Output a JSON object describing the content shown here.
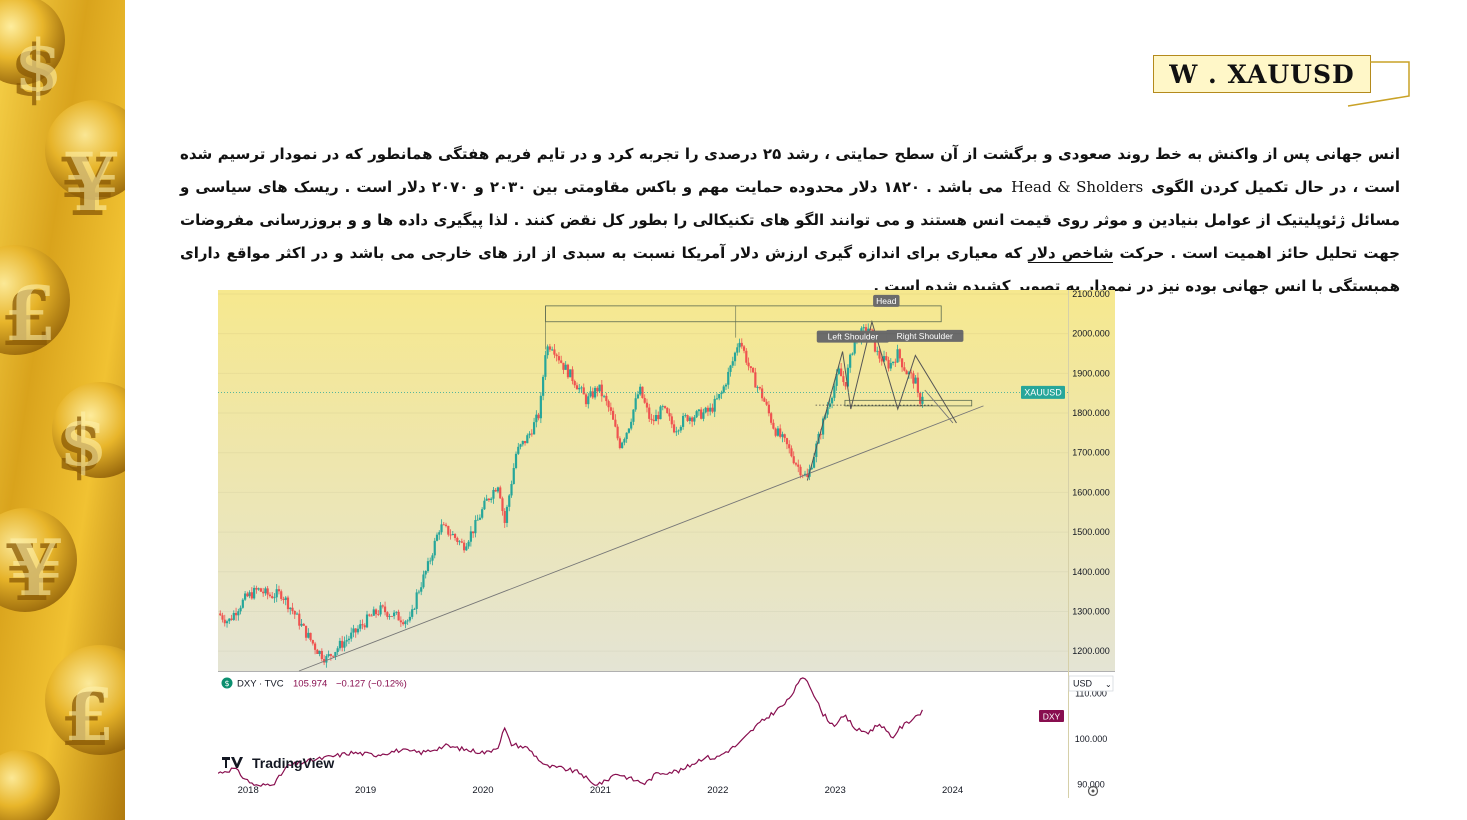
{
  "slide": {
    "title": "W . XAUUSD",
    "paragraph_part1": "انس جهانی پس از واکنش به خط روند صعودی و برگشت از  آن سطح حمایتی ، رشد ۲۵ درصدی را تجربه کرد و در تایم فریم هفتگی  همانطور که در نمودار ترسیم شده است ، در حال تکمیل کردن الگوی",
    "paragraph_latin": "Head & Sholders",
    "paragraph_part2": "می باشد . ۱۸۲۰ دلار محدوده حمایت مهم و باکس مقاومتی بین ۲۰۳۰ و ۲۰۷۰ دلار است . ریسک های سیاسی و مسائل ژئوپلیتیک از عوامل بنیادین و موثر روی قیمت انس هستند و می توانند الگو های تکنیکالی را بطور کل نقض کنند . لذا پیگیری داده ها و و بروزرسانی مفروضات جهت تحلیل حائز اهمیت است . حرکت",
    "paragraph_link": "شاخص دلار",
    "paragraph_part3": "که معیاری برای اندازه گیری ارزش دلار آمریکا نسبت به سبدی از ارز های خارجی می باشد و در اکثر مواقع دارای همبستگی با انس جهانی بوده نیز در نمودار به تصویر کشیده شده است ."
  },
  "colors": {
    "accent_gold": "#c9a227",
    "chart_bg_top": "#f6e88e",
    "chart_bg_bottom": "#e6e6d2",
    "up": "#26a69a",
    "down": "#ef5350",
    "dxy_line": "#880e4f"
  },
  "chart_data": [
    {
      "type": "candlestick",
      "title": "",
      "symbol_label": "XAUUSD",
      "x_ticks": [
        "2018",
        "2019",
        "2020",
        "2021",
        "2022",
        "2023",
        "2024"
      ],
      "y_ticks": [
        "1200.000",
        "1300.000",
        "1400.000",
        "1500.000",
        "1600.000",
        "1700.000",
        "1800.000",
        "1900.000",
        "2000.000",
        "2100.000"
      ],
      "ylim": [
        1150,
        2110
      ],
      "x_range": [
        2017.76,
        2025.0
      ],
      "last_price": 1852,
      "close_path": [
        [
          2017.76,
          1295
        ],
        [
          2017.85,
          1275
        ],
        [
          2017.93,
          1310
        ],
        [
          2018.0,
          1335
        ],
        [
          2018.1,
          1355
        ],
        [
          2018.2,
          1340
        ],
        [
          2018.3,
          1345
        ],
        [
          2018.4,
          1300
        ],
        [
          2018.5,
          1250
        ],
        [
          2018.6,
          1205
        ],
        [
          2018.68,
          1180
        ],
        [
          2018.8,
          1215
        ],
        [
          2018.92,
          1245
        ],
        [
          2019.05,
          1285
        ],
        [
          2019.15,
          1305
        ],
        [
          2019.3,
          1285
        ],
        [
          2019.4,
          1275
        ],
        [
          2019.45,
          1340
        ],
        [
          2019.55,
          1415
        ],
        [
          2019.65,
          1515
        ],
        [
          2019.75,
          1495
        ],
        [
          2019.85,
          1465
        ],
        [
          2019.95,
          1515
        ],
        [
          2020.05,
          1580
        ],
        [
          2020.15,
          1625
        ],
        [
          2020.2,
          1520
        ],
        [
          2020.3,
          1700
        ],
        [
          2020.4,
          1740
        ],
        [
          2020.5,
          1800
        ],
        [
          2020.55,
          1960
        ],
        [
          2020.6,
          1975
        ],
        [
          2020.7,
          1920
        ],
        [
          2020.8,
          1880
        ],
        [
          2020.9,
          1830
        ],
        [
          2021.0,
          1865
        ],
        [
          2021.1,
          1805
        ],
        [
          2021.18,
          1720
        ],
        [
          2021.25,
          1760
        ],
        [
          2021.35,
          1860
        ],
        [
          2021.45,
          1775
        ],
        [
          2021.55,
          1810
        ],
        [
          2021.65,
          1760
        ],
        [
          2021.75,
          1790
        ],
        [
          2021.85,
          1795
        ],
        [
          2021.95,
          1805
        ],
        [
          2022.05,
          1850
        ],
        [
          2022.15,
          1935
        ],
        [
          2022.2,
          1990
        ],
        [
          2022.3,
          1900
        ],
        [
          2022.4,
          1840
        ],
        [
          2022.5,
          1760
        ],
        [
          2022.6,
          1720
        ],
        [
          2022.7,
          1665
        ],
        [
          2022.78,
          1635
        ],
        [
          2022.85,
          1710
        ],
        [
          2022.95,
          1815
        ],
        [
          2023.05,
          1905
        ],
        [
          2023.1,
          1870
        ],
        [
          2023.18,
          1985
        ],
        [
          2023.3,
          2015
        ],
        [
          2023.38,
          1945
        ],
        [
          2023.48,
          1920
        ],
        [
          2023.55,
          1950
        ],
        [
          2023.62,
          1905
        ],
        [
          2023.7,
          1880
        ],
        [
          2023.73,
          1825
        ],
        [
          2023.77,
          1855
        ]
      ],
      "annotations": [
        "Head",
        "Left Shoulder",
        "Right Shoulder"
      ],
      "resistance_box": [
        2030,
        2070
      ],
      "support_level": 1820
    },
    {
      "type": "line",
      "title": "",
      "symbol_header": "DXY · TVC",
      "last_value": "105.974",
      "change": "−0.127 (−0.12%)",
      "series_label": "DXY",
      "currency_label": "USD",
      "currency_suffix": "⌄",
      "y_ticks": [
        "90.000",
        "100.000",
        "110.000"
      ],
      "ylim": [
        87,
        115
      ],
      "points": [
        [
          2017.76,
          92.5
        ],
        [
          2017.9,
          93.5
        ],
        [
          2018.0,
          91.0
        ],
        [
          2018.1,
          89.5
        ],
        [
          2018.25,
          90.5
        ],
        [
          2018.35,
          94.0
        ],
        [
          2018.5,
          95.0
        ],
        [
          2018.7,
          96.0
        ],
        [
          2018.9,
          97.0
        ],
        [
          2019.1,
          96.5
        ],
        [
          2019.3,
          97.5
        ],
        [
          2019.5,
          97.0
        ],
        [
          2019.7,
          98.5
        ],
        [
          2019.9,
          97.5
        ],
        [
          2020.05,
          97.0
        ],
        [
          2020.15,
          98.5
        ],
        [
          2020.2,
          102.5
        ],
        [
          2020.25,
          99.0
        ],
        [
          2020.4,
          98.0
        ],
        [
          2020.55,
          94.0
        ],
        [
          2020.7,
          93.5
        ],
        [
          2020.85,
          92.5
        ],
        [
          2020.95,
          90.0
        ],
        [
          2021.05,
          90.5
        ],
        [
          2021.15,
          92.5
        ],
        [
          2021.3,
          91.0
        ],
        [
          2021.4,
          90.2
        ],
        [
          2021.5,
          92.5
        ],
        [
          2021.7,
          93.0
        ],
        [
          2021.9,
          96.0
        ],
        [
          2022.0,
          95.8
        ],
        [
          2022.2,
          99.0
        ],
        [
          2022.35,
          103.0
        ],
        [
          2022.5,
          106.0
        ],
        [
          2022.6,
          108.0
        ],
        [
          2022.7,
          112.0
        ],
        [
          2022.75,
          114.0
        ],
        [
          2022.8,
          112.0
        ],
        [
          2022.9,
          106.0
        ],
        [
          2023.0,
          103.0
        ],
        [
          2023.1,
          105.0
        ],
        [
          2023.2,
          102.0
        ],
        [
          2023.3,
          101.5
        ],
        [
          2023.4,
          103.5
        ],
        [
          2023.5,
          100.0
        ],
        [
          2023.55,
          102.0
        ],
        [
          2023.65,
          104.0
        ],
        [
          2023.75,
          106.0
        ],
        [
          2023.77,
          105.97
        ]
      ]
    }
  ],
  "watermark": "TradingView"
}
